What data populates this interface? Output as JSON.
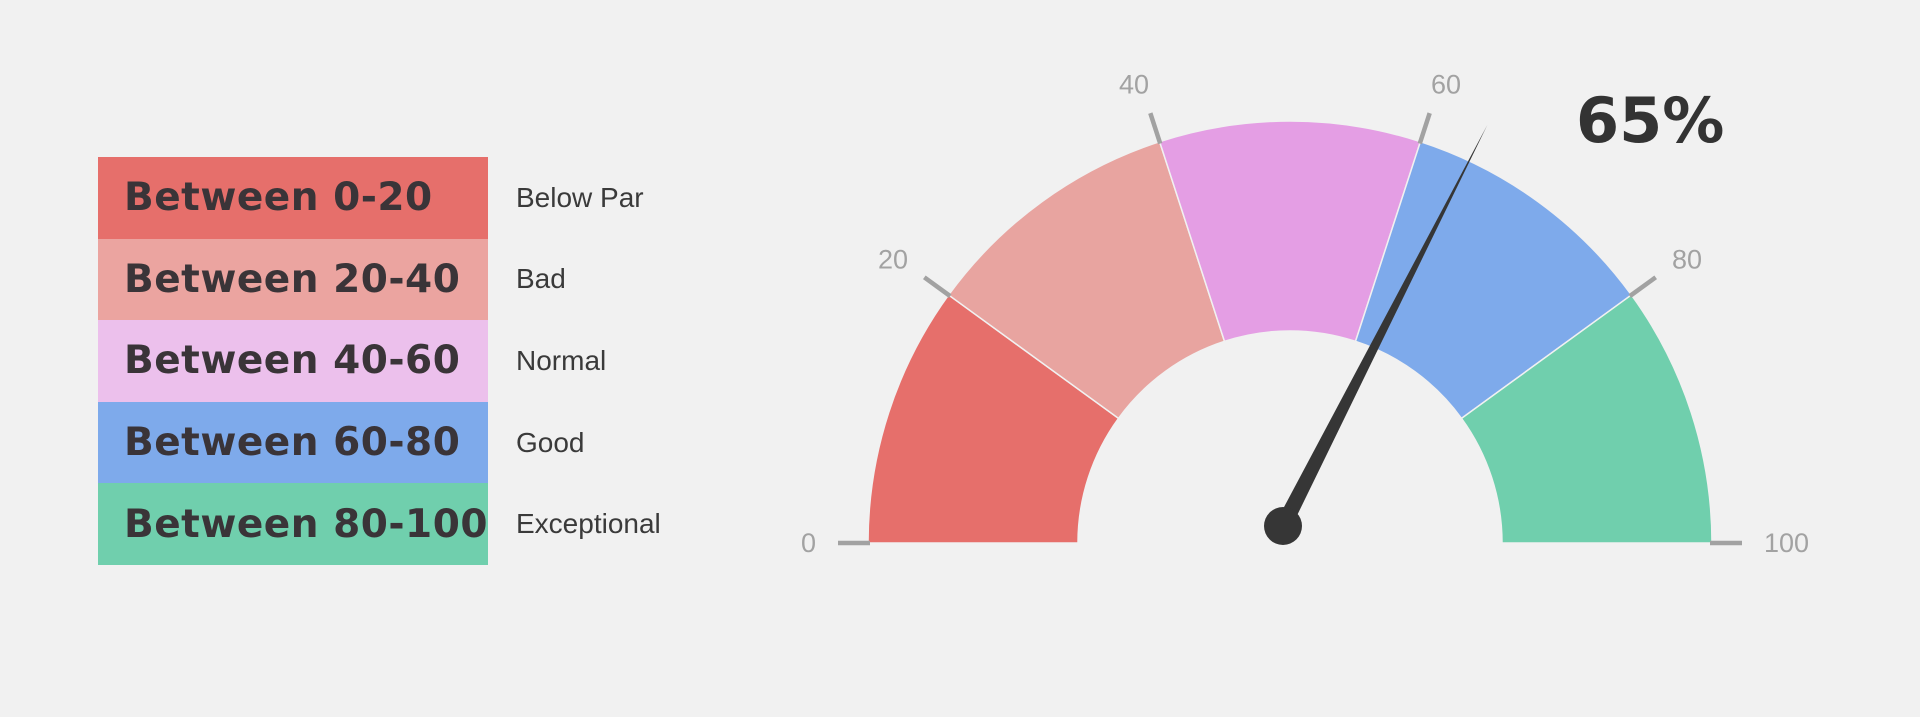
{
  "chart_data": {
    "type": "gauge",
    "min": 0,
    "max": 100,
    "value": 65,
    "value_label": "65%",
    "ticks": [
      {
        "value": 0,
        "label": "0"
      },
      {
        "value": 20,
        "label": "20"
      },
      {
        "value": 40,
        "label": "40"
      },
      {
        "value": 60,
        "label": "60"
      },
      {
        "value": 80,
        "label": "80"
      },
      {
        "value": 100,
        "label": "100"
      }
    ],
    "bands": [
      {
        "from": 0,
        "to": 20,
        "color": "#e66f6b",
        "range_label": "Between 0-20",
        "description": "Below Par"
      },
      {
        "from": 20,
        "to": 40,
        "color": "#e8a4a0",
        "range_label": "Between 20-40",
        "description": "Bad"
      },
      {
        "from": 40,
        "to": 60,
        "color": "#e49ee4",
        "range_label": "Between 40-60",
        "description": "Normal"
      },
      {
        "from": 60,
        "to": 80,
        "color": "#7eaaeb",
        "range_label": "Between 60-80",
        "description": "Good"
      },
      {
        "from": 80,
        "to": 100,
        "color": "#70cfad",
        "range_label": "Between 80-100",
        "description": "Exceptional"
      }
    ],
    "legend_colors": [
      "#e66f6b",
      "#eba4a0",
      "#ecc0ec",
      "#7eaaeb",
      "#70cfad"
    ],
    "needle_color": "#363636",
    "tick_color": "#a2a2a2"
  }
}
